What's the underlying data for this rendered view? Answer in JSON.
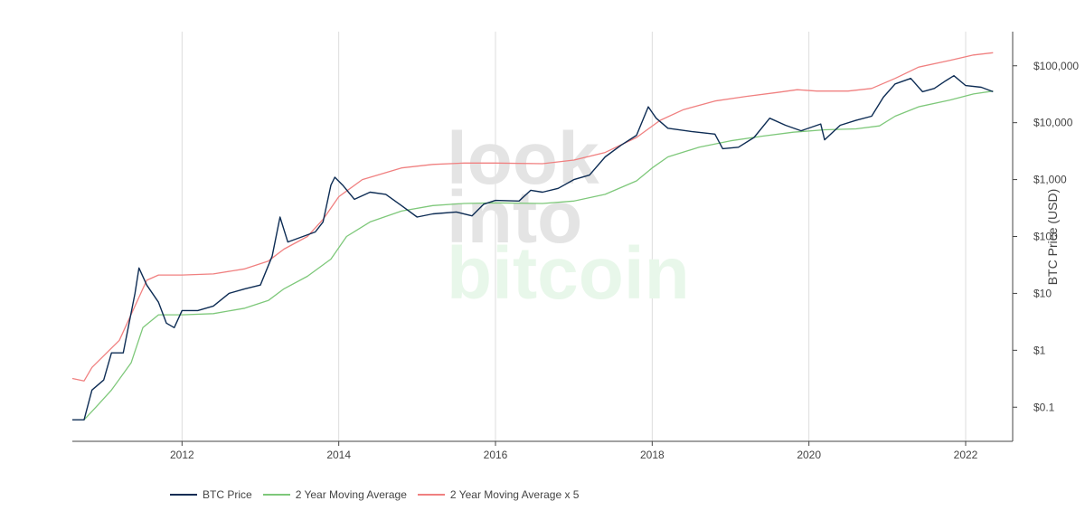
{
  "watermark": {
    "line1": "look",
    "line2": "into",
    "line3": "bitcoin"
  },
  "legend": [
    {
      "label": "BTC Price",
      "color": "#0d2c54"
    },
    {
      "label": "2 Year Moving Average",
      "color": "#7ec87a"
    },
    {
      "label": "2 Year Moving Average x 5",
      "color": "#f08080"
    }
  ],
  "chart_data": {
    "type": "line",
    "xlabel": "",
    "ylabel": "BTC Price (USD)",
    "yscale": "log",
    "xlim": [
      2010.6,
      2022.6
    ],
    "ylim_log10": [
      -1.6,
      5.6
    ],
    "grid": "vertical",
    "legend_position": "bottom",
    "x_ticks": [
      {
        "value": 2012,
        "label": "2012"
      },
      {
        "value": 2014,
        "label": "2014"
      },
      {
        "value": 2016,
        "label": "2016"
      },
      {
        "value": 2018,
        "label": "2018"
      },
      {
        "value": 2020,
        "label": "2020"
      },
      {
        "value": 2022,
        "label": "2022"
      }
    ],
    "y_ticks": [
      {
        "value": 0.1,
        "label": "$0.1"
      },
      {
        "value": 1,
        "label": "$1"
      },
      {
        "value": 10,
        "label": "$10"
      },
      {
        "value": 100,
        "label": "$100"
      },
      {
        "value": 1000,
        "label": "$1,000"
      },
      {
        "value": 10000,
        "label": "$10,000"
      },
      {
        "value": 100000,
        "label": "$100,000"
      }
    ],
    "series": [
      {
        "name": "BTC Price",
        "color": "#0d2c54",
        "points": [
          [
            2010.6,
            0.06
          ],
          [
            2010.75,
            0.06
          ],
          [
            2010.85,
            0.2
          ],
          [
            2011.0,
            0.3
          ],
          [
            2011.1,
            0.9
          ],
          [
            2011.25,
            0.9
          ],
          [
            2011.4,
            10
          ],
          [
            2011.45,
            28
          ],
          [
            2011.55,
            14
          ],
          [
            2011.7,
            7
          ],
          [
            2011.8,
            3
          ],
          [
            2011.9,
            2.5
          ],
          [
            2012.0,
            5
          ],
          [
            2012.2,
            5
          ],
          [
            2012.4,
            6
          ],
          [
            2012.6,
            10
          ],
          [
            2012.8,
            12
          ],
          [
            2013.0,
            14
          ],
          [
            2013.15,
            45
          ],
          [
            2013.25,
            220
          ],
          [
            2013.35,
            80
          ],
          [
            2013.5,
            95
          ],
          [
            2013.7,
            120
          ],
          [
            2013.8,
            180
          ],
          [
            2013.9,
            800
          ],
          [
            2013.95,
            1100
          ],
          [
            2014.05,
            800
          ],
          [
            2014.2,
            450
          ],
          [
            2014.4,
            600
          ],
          [
            2014.6,
            550
          ],
          [
            2014.8,
            350
          ],
          [
            2015.0,
            220
          ],
          [
            2015.2,
            250
          ],
          [
            2015.5,
            270
          ],
          [
            2015.7,
            230
          ],
          [
            2015.85,
            370
          ],
          [
            2016.0,
            430
          ],
          [
            2016.3,
            420
          ],
          [
            2016.45,
            650
          ],
          [
            2016.6,
            600
          ],
          [
            2016.8,
            700
          ],
          [
            2017.0,
            1000
          ],
          [
            2017.2,
            1200
          ],
          [
            2017.4,
            2500
          ],
          [
            2017.6,
            4000
          ],
          [
            2017.8,
            6000
          ],
          [
            2017.95,
            19000
          ],
          [
            2018.05,
            12000
          ],
          [
            2018.2,
            8000
          ],
          [
            2018.5,
            7000
          ],
          [
            2018.8,
            6300
          ],
          [
            2018.9,
            3500
          ],
          [
            2019.1,
            3700
          ],
          [
            2019.3,
            5500
          ],
          [
            2019.5,
            12000
          ],
          [
            2019.7,
            9000
          ],
          [
            2019.9,
            7200
          ],
          [
            2020.15,
            9500
          ],
          [
            2020.2,
            5000
          ],
          [
            2020.4,
            9000
          ],
          [
            2020.6,
            11000
          ],
          [
            2020.8,
            13000
          ],
          [
            2020.95,
            28000
          ],
          [
            2021.1,
            48000
          ],
          [
            2021.3,
            60000
          ],
          [
            2021.45,
            35000
          ],
          [
            2021.6,
            40000
          ],
          [
            2021.75,
            55000
          ],
          [
            2021.85,
            67000
          ],
          [
            2022.0,
            45000
          ],
          [
            2022.2,
            42000
          ],
          [
            2022.35,
            35000
          ]
        ]
      },
      {
        "name": "2 Year Moving Average",
        "color": "#7ec87a",
        "points": [
          [
            2010.75,
            0.06
          ],
          [
            2010.9,
            0.1
          ],
          [
            2011.1,
            0.2
          ],
          [
            2011.35,
            0.6
          ],
          [
            2011.5,
            2.5
          ],
          [
            2011.7,
            4.2
          ],
          [
            2012.0,
            4.2
          ],
          [
            2012.4,
            4.4
          ],
          [
            2012.8,
            5.5
          ],
          [
            2013.1,
            7.5
          ],
          [
            2013.3,
            12
          ],
          [
            2013.6,
            20
          ],
          [
            2013.9,
            40
          ],
          [
            2014.1,
            100
          ],
          [
            2014.4,
            180
          ],
          [
            2014.8,
            280
          ],
          [
            2015.2,
            350
          ],
          [
            2015.6,
            380
          ],
          [
            2016.0,
            390
          ],
          [
            2016.6,
            380
          ],
          [
            2017.0,
            420
          ],
          [
            2017.4,
            550
          ],
          [
            2017.8,
            950
          ],
          [
            2018.0,
            1600
          ],
          [
            2018.2,
            2500
          ],
          [
            2018.6,
            3700
          ],
          [
            2019.0,
            4800
          ],
          [
            2019.4,
            5800
          ],
          [
            2019.8,
            6800
          ],
          [
            2020.2,
            7500
          ],
          [
            2020.6,
            7800
          ],
          [
            2020.9,
            8800
          ],
          [
            2021.1,
            13000
          ],
          [
            2021.4,
            19000
          ],
          [
            2021.8,
            25000
          ],
          [
            2022.1,
            32000
          ],
          [
            2022.35,
            36000
          ]
        ]
      },
      {
        "name": "2 Year Moving Average x 5",
        "color": "#f08080",
        "points": [
          [
            2010.6,
            0.32
          ],
          [
            2010.75,
            0.29
          ],
          [
            2010.85,
            0.5
          ],
          [
            2011.0,
            0.8
          ],
          [
            2011.2,
            1.5
          ],
          [
            2011.4,
            6
          ],
          [
            2011.55,
            17
          ],
          [
            2011.7,
            21
          ],
          [
            2012.0,
            21
          ],
          [
            2012.4,
            22
          ],
          [
            2012.8,
            27
          ],
          [
            2013.1,
            37
          ],
          [
            2013.3,
            60
          ],
          [
            2013.6,
            100
          ],
          [
            2013.8,
            200
          ],
          [
            2014.0,
            500
          ],
          [
            2014.3,
            1000
          ],
          [
            2014.8,
            1600
          ],
          [
            2015.2,
            1850
          ],
          [
            2015.6,
            1950
          ],
          [
            2016.0,
            1950
          ],
          [
            2016.6,
            1900
          ],
          [
            2017.0,
            2200
          ],
          [
            2017.4,
            3000
          ],
          [
            2017.8,
            5500
          ],
          [
            2018.1,
            11000
          ],
          [
            2018.4,
            17000
          ],
          [
            2018.8,
            24000
          ],
          [
            2019.2,
            29000
          ],
          [
            2019.6,
            34000
          ],
          [
            2019.85,
            38000
          ],
          [
            2020.1,
            36000
          ],
          [
            2020.5,
            36000
          ],
          [
            2020.8,
            40000
          ],
          [
            2021.1,
            60000
          ],
          [
            2021.4,
            95000
          ],
          [
            2021.8,
            125000
          ],
          [
            2022.1,
            155000
          ],
          [
            2022.35,
            170000
          ]
        ]
      }
    ]
  }
}
